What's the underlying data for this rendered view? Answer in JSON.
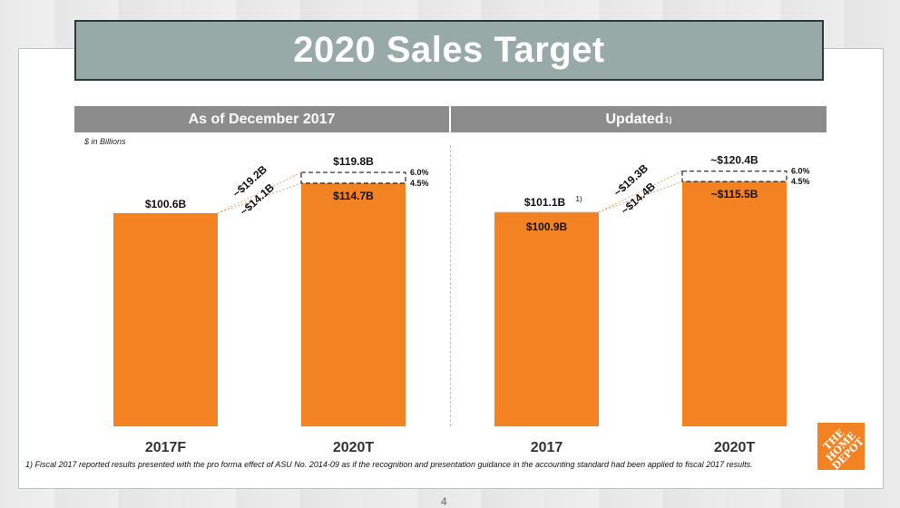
{
  "title": "2020 Sales Target",
  "panels": {
    "left_header": "As of December 2017",
    "right_header": "Updated",
    "right_header_sup": "1)",
    "units": "$ in Billions"
  },
  "chart_data": [
    {
      "type": "bar",
      "panel": "As of December 2017",
      "categories": [
        "2017F",
        "2020T"
      ],
      "values": [
        100.6,
        114.7
      ],
      "value_labels": [
        "$100.6B",
        "$114.7B"
      ],
      "target_high": 119.8,
      "target_high_label": "$119.8B",
      "pct_high": "6.0%",
      "pct_low": "4.5%",
      "growth_high_label": "~$19.2B",
      "growth_low_label": "~$14.1B",
      "ylim": [
        0,
        140
      ]
    },
    {
      "type": "bar",
      "panel": "Updated",
      "categories": [
        "2017",
        "2020T"
      ],
      "values": [
        100.9,
        115.5
      ],
      "value_labels": [
        "$100.9B",
        "~$115.5B"
      ],
      "reported_value": 101.1,
      "reported_label": "$101.1B",
      "reported_sup": "1)",
      "target_high": 120.4,
      "target_high_label": "~$120.4B",
      "pct_high": "6.0%",
      "pct_low": "4.5%",
      "growth_high_label": "~$19.3B",
      "growth_low_label": "~$14.4B",
      "ylim": [
        0,
        140
      ]
    }
  ],
  "colors": {
    "bar": "#f28222",
    "reported_cap": "#8c8c8c",
    "title_banner": "#98aaa8",
    "header": "#8c8c8c",
    "text": "#111111"
  },
  "footnote": "1) Fiscal 2017 reported results presented with the pro forma effect of ASU No. 2014-09 as if the recognition and presentation guidance in the accounting standard had been applied to fiscal 2017 results.",
  "logo": {
    "text": "THE HOME DEPOT",
    "icon": "home-depot-logo"
  },
  "page_number": "4"
}
